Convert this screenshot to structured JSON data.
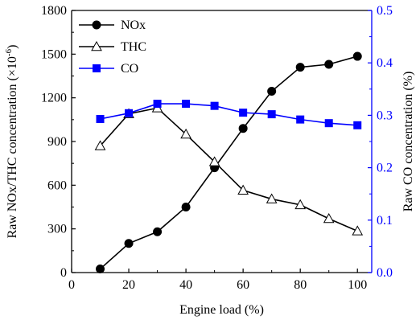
{
  "chart_data": {
    "type": "line",
    "x": [
      10,
      20,
      30,
      40,
      50,
      60,
      70,
      80,
      90,
      100
    ],
    "xlabel": "Engine load (%)",
    "xlim": [
      0,
      105
    ],
    "xticks": [
      0,
      20,
      40,
      60,
      80,
      100
    ],
    "ylabel_left": "Raw NOx/THC concentration (×10",
    "ylabel_left_exp": "-6",
    "ylabel_left_close": ")",
    "ylim_left": [
      0,
      1800
    ],
    "yticks_left": [
      0,
      300,
      600,
      900,
      1200,
      1500,
      1800
    ],
    "ylabel_right": "Raw CO concentration (%)",
    "ylim_right": [
      0,
      0.5
    ],
    "yticks_right": [
      "0.0",
      "0.1",
      "0.2",
      "0.3",
      "0.4",
      "0.5"
    ],
    "right_axis_color": "#0000ff",
    "legend_position": "top-left",
    "grid": false,
    "series": [
      {
        "name": "NOx",
        "axis": "left",
        "marker": "filled-circle",
        "color": "#000000",
        "values": [
          25,
          200,
          280,
          450,
          720,
          990,
          1245,
          1410,
          1430,
          1485
        ]
      },
      {
        "name": "THC",
        "axis": "left",
        "marker": "open-triangle",
        "color": "#000000",
        "values": [
          870,
          1090,
          1130,
          950,
          760,
          565,
          505,
          465,
          370,
          285
        ]
      },
      {
        "name": "CO",
        "axis": "right",
        "marker": "filled-square",
        "color": "#0000ff",
        "values": [
          0.293,
          0.304,
          0.322,
          0.322,
          0.318,
          0.305,
          0.302,
          0.292,
          0.285,
          0.281
        ]
      }
    ]
  }
}
